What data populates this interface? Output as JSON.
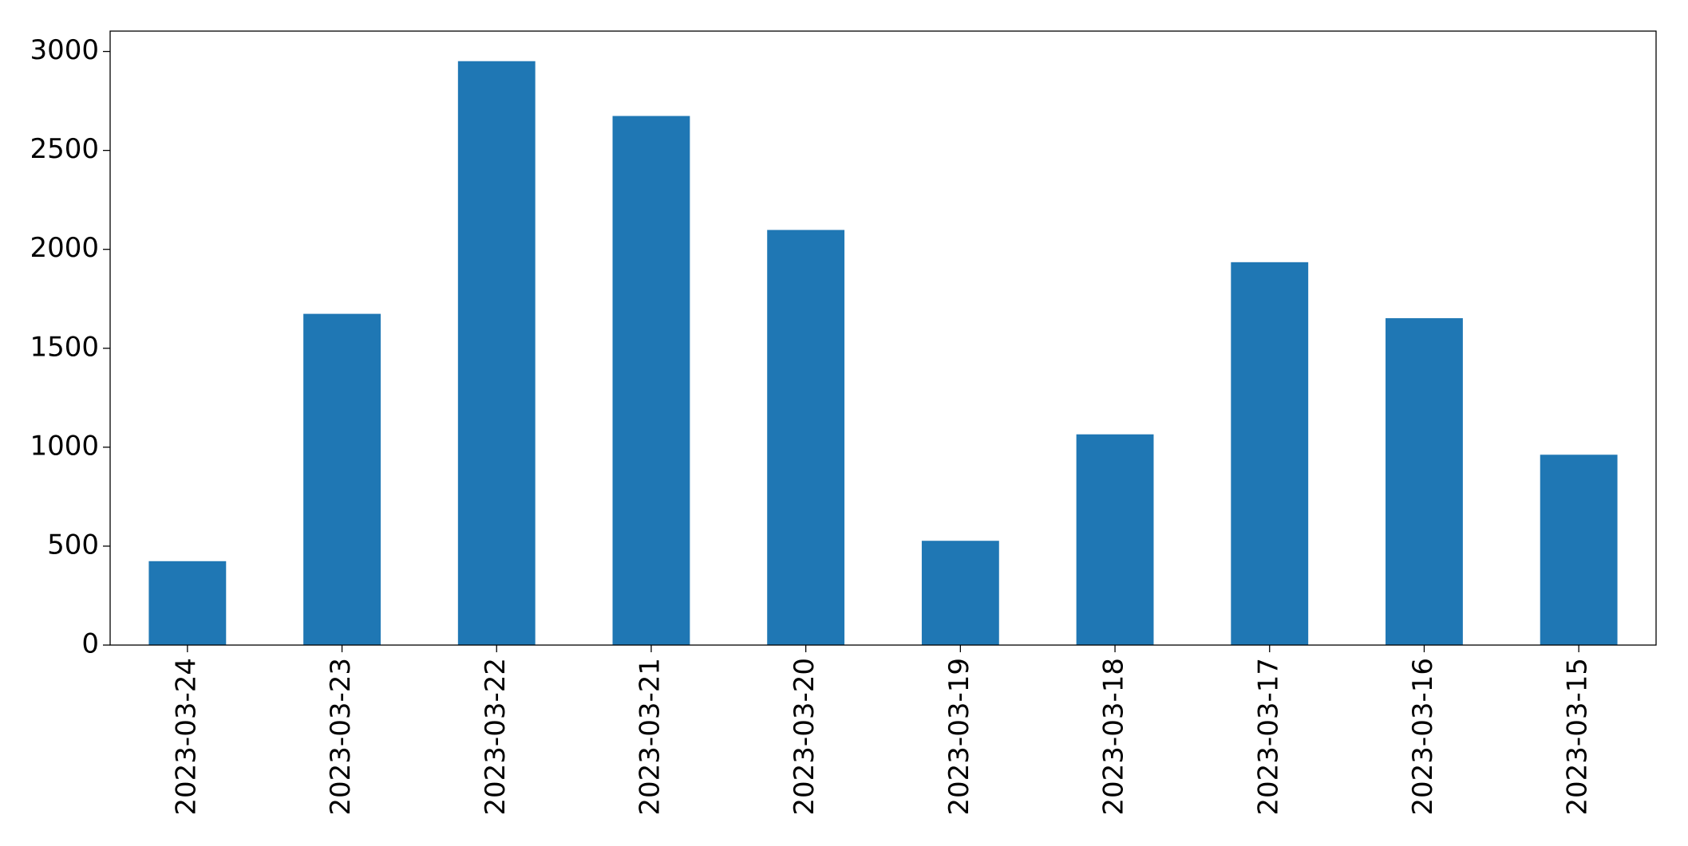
{
  "chart_data": {
    "type": "bar",
    "categories": [
      "2023-03-24",
      "2023-03-23",
      "2023-03-22",
      "2023-03-21",
      "2023-03-20",
      "2023-03-19",
      "2023-03-18",
      "2023-03-17",
      "2023-03-16",
      "2023-03-15"
    ],
    "values": [
      424,
      1674,
      2951,
      2674,
      2098,
      527,
      1065,
      1935,
      1652,
      962
    ],
    "color": "#1f77b4",
    "ylim": [
      0,
      3103
    ],
    "yticks": [
      0,
      500,
      1000,
      1500,
      2000,
      2500,
      3000
    ],
    "grid": false
  }
}
